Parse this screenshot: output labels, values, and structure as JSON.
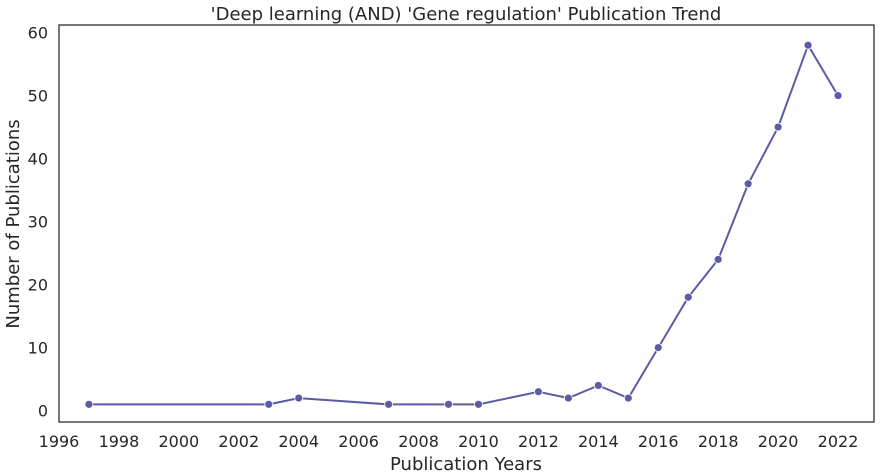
{
  "chart_data": {
    "type": "line",
    "title": "'Deep learning (AND) 'Gene regulation' Publication Trend",
    "xlabel": "Publication Years",
    "ylabel": "Number of Publications",
    "xlim": [
      1996,
      2023.2
    ],
    "ylim": [
      -1.8,
      61.2
    ],
    "x_ticks": [
      1996,
      1998,
      2000,
      2002,
      2004,
      2006,
      2008,
      2010,
      2012,
      2014,
      2016,
      2018,
      2020,
      2022
    ],
    "y_ticks": [
      0,
      10,
      20,
      30,
      40,
      50,
      60
    ],
    "grid": false,
    "legend": "none",
    "series": [
      {
        "color": "#5b5ba6",
        "x": [
          1997,
          2003,
          2004,
          2007,
          2009,
          2010,
          2012,
          2013,
          2014,
          2015,
          2016,
          2017,
          2018,
          2019,
          2020,
          2021,
          2022
        ],
        "y": [
          1,
          1,
          2,
          1,
          1,
          1,
          3,
          2,
          4,
          2,
          10,
          18,
          24,
          36,
          45,
          58,
          50
        ]
      }
    ]
  }
}
